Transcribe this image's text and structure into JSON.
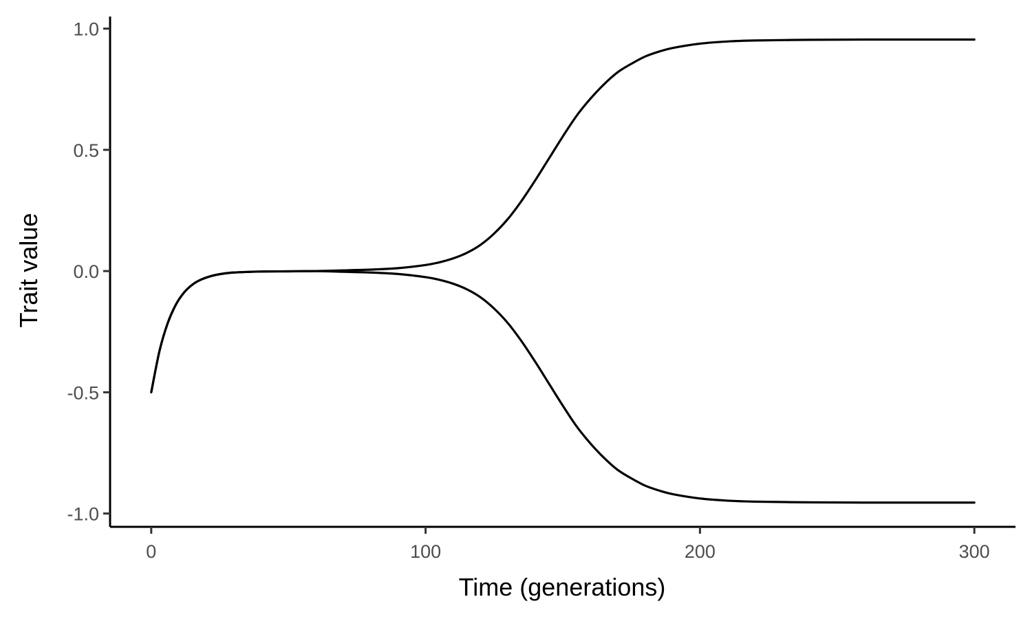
{
  "chart_data": {
    "type": "line",
    "title": "",
    "xlabel": "Time (generations)",
    "ylabel": "Trait value",
    "xlim": [
      -15,
      315
    ],
    "ylim": [
      -1.055,
      1.05
    ],
    "x_ticks": [
      0,
      100,
      200,
      300
    ],
    "x_tick_labels": [
      "0",
      "100",
      "200",
      "300"
    ],
    "y_ticks": [
      -1.0,
      -0.5,
      0.0,
      0.5,
      1.0
    ],
    "y_tick_labels": [
      "-1.0",
      "-0.5",
      "0.0",
      "0.5",
      "1.0"
    ],
    "grid": false,
    "legend": "none",
    "line_color": "#000000",
    "series": [
      {
        "x": [
          0,
          3,
          6,
          9,
          12,
          15,
          18,
          22,
          26,
          30,
          40,
          50,
          60,
          70,
          80,
          90,
          100,
          105,
          110,
          115,
          120,
          125,
          130,
          135,
          140,
          145,
          150,
          155,
          160,
          165,
          170,
          175,
          180,
          185,
          190,
          200,
          210,
          220,
          240,
          260,
          280,
          300
        ],
        "values": [
          -0.5,
          -0.33,
          -0.215,
          -0.138,
          -0.088,
          -0.056,
          -0.036,
          -0.02,
          -0.011,
          -0.006,
          -0.002,
          -0.001,
          0.0,
          0.003,
          0.006,
          0.012,
          0.025,
          0.036,
          0.052,
          0.075,
          0.108,
          0.155,
          0.215,
          0.29,
          0.375,
          0.465,
          0.555,
          0.64,
          0.71,
          0.77,
          0.82,
          0.855,
          0.885,
          0.905,
          0.92,
          0.938,
          0.947,
          0.951,
          0.954,
          0.955,
          0.955,
          0.955
        ]
      },
      {
        "x": [
          0,
          3,
          6,
          9,
          12,
          15,
          18,
          22,
          26,
          30,
          40,
          50,
          60,
          70,
          80,
          90,
          100,
          105,
          110,
          115,
          120,
          125,
          130,
          135,
          140,
          145,
          150,
          155,
          160,
          165,
          170,
          175,
          180,
          185,
          190,
          200,
          210,
          220,
          240,
          260,
          280,
          300
        ],
        "values": [
          -0.5,
          -0.33,
          -0.215,
          -0.138,
          -0.088,
          -0.056,
          -0.036,
          -0.02,
          -0.011,
          -0.006,
          -0.002,
          -0.001,
          0.0,
          -0.003,
          -0.006,
          -0.012,
          -0.025,
          -0.036,
          -0.052,
          -0.075,
          -0.108,
          -0.155,
          -0.215,
          -0.29,
          -0.375,
          -0.465,
          -0.555,
          -0.64,
          -0.71,
          -0.77,
          -0.82,
          -0.855,
          -0.885,
          -0.905,
          -0.92,
          -0.938,
          -0.947,
          -0.951,
          -0.954,
          -0.955,
          -0.955,
          -0.955
        ]
      }
    ]
  }
}
